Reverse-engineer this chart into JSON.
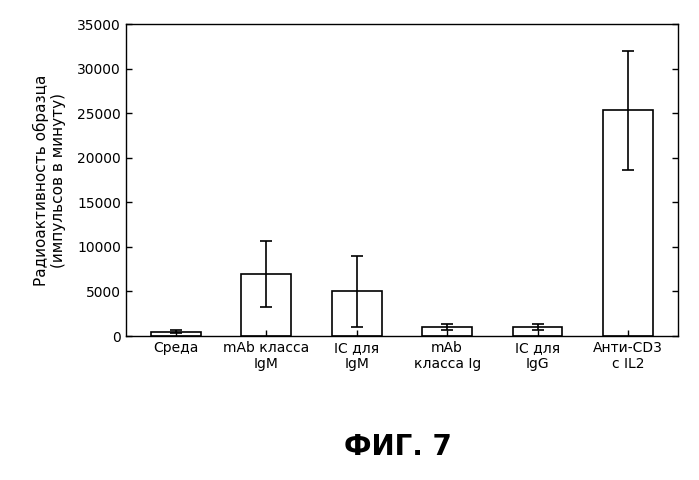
{
  "categories": [
    "Среда",
    "mAb класса\nIgM",
    "IC для\nIgM",
    "mAb\nкласса Ig",
    "IC для\nIgG",
    "Анти-CD3\nc IL2"
  ],
  "values": [
    500,
    7000,
    5000,
    1000,
    1000,
    25300
  ],
  "errors": [
    150,
    3700,
    4000,
    300,
    300,
    6700
  ],
  "bar_color": "#ffffff",
  "bar_edge_color": "#000000",
  "bar_width": 0.55,
  "ylim": [
    0,
    35000
  ],
  "yticks": [
    0,
    5000,
    10000,
    15000,
    20000,
    25000,
    30000,
    35000
  ],
  "ylabel_line1": "Радиоактивность образца",
  "ylabel_line2": "(импульсов в минуту)",
  "figure_title": "ФИГ. 7",
  "bg_color": "#ffffff",
  "capsize": 4,
  "elinewidth": 1.2,
  "title_fontsize": 20,
  "ylabel_fontsize": 11,
  "tick_fontsize": 10,
  "xtick_fontsize": 10
}
